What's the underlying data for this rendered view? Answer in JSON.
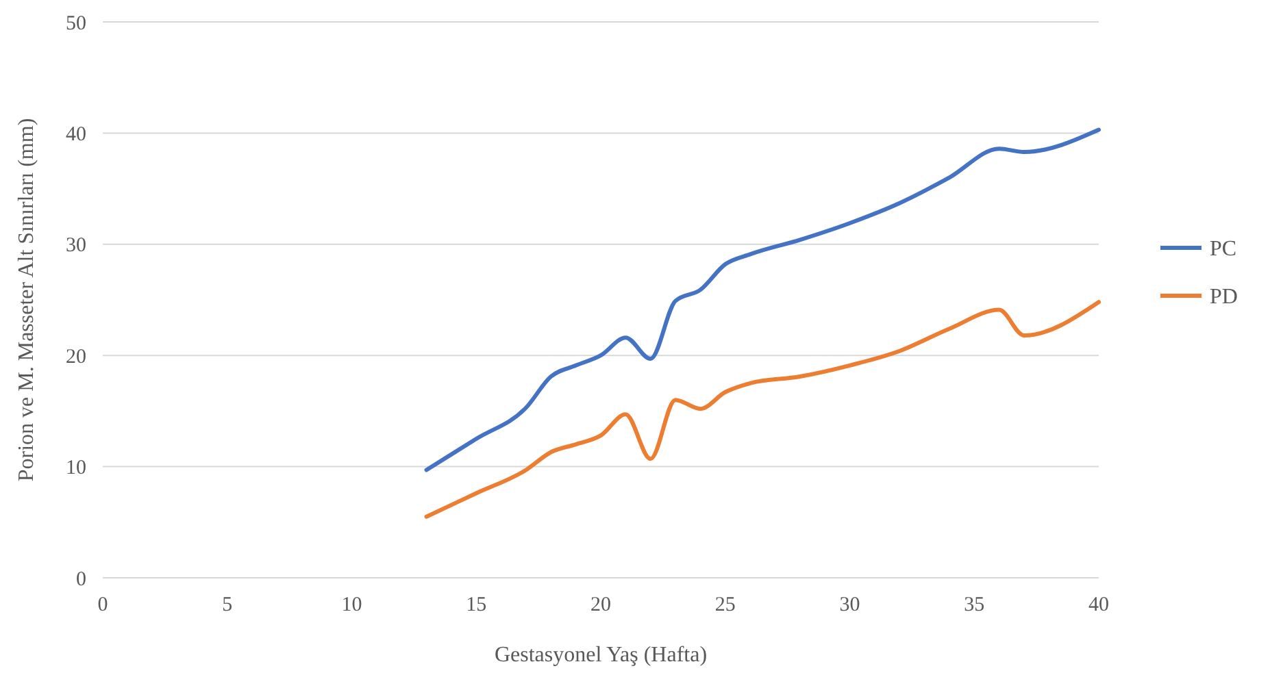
{
  "chart_data": {
    "type": "line",
    "xlabel": "Gestasyonel Yaş (Hafta)",
    "ylabel": "Porion ve M. Masseter Alt Sınırları (mm)",
    "x": [
      13,
      15,
      17,
      18,
      19,
      20,
      21,
      22,
      23,
      24,
      25,
      26,
      28,
      30,
      32,
      34,
      36,
      37,
      40
    ],
    "series": [
      {
        "name": "PC",
        "color": "#4472c4",
        "values": [
          9.7,
          12.5,
          15.3,
          18.1,
          19.1,
          20,
          21.6,
          19.7,
          24.9,
          25.9,
          28.2,
          29.1,
          30.4,
          31.9,
          33.7,
          36.0,
          38.6,
          38.3,
          40.3
        ]
      },
      {
        "name": "PD",
        "color": "#ed7d31",
        "values": [
          5.5,
          7.6,
          9.7,
          11.3,
          12,
          12.8,
          14.7,
          10.7,
          16.0,
          15.2,
          16.7,
          17.5,
          18.1,
          19.1,
          20.4,
          22.4,
          24.1,
          21.8,
          24.8
        ]
      }
    ],
    "xlim": [
      0,
      40
    ],
    "xticks": [
      0,
      5,
      10,
      15,
      20,
      25,
      30,
      35,
      40
    ],
    "ylim": [
      0,
      50
    ],
    "yticks": [
      0,
      10,
      20,
      30,
      40,
      50
    ],
    "grid": "y",
    "legend": "right",
    "marker": "none",
    "line_style": "solid"
  }
}
